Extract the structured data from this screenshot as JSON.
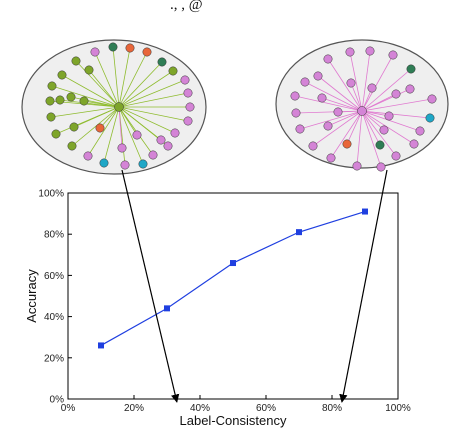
{
  "header_fragment": "., ,  @",
  "chart_data": {
    "type": "line",
    "xlabel": "Label-Consistency",
    "ylabel": "Accuracy",
    "xlim": [
      0,
      100
    ],
    "ylim": [
      0,
      100
    ],
    "x_ticks": [
      "0%",
      "20%",
      "40%",
      "60%",
      "80%",
      "100%"
    ],
    "y_ticks": [
      "0%",
      "20%",
      "40%",
      "60%",
      "80%",
      "100%"
    ],
    "series": [
      {
        "x": [
          10,
          30,
          50,
          70,
          90
        ],
        "y": [
          26,
          44,
          66,
          81,
          91
        ]
      }
    ],
    "grid": false,
    "line_color": "#1f3fe0",
    "annotations": [
      {
        "type": "network-inset",
        "position": "top-left",
        "points_to_x": 33
      },
      {
        "type": "network-inset",
        "position": "top-right",
        "points_to_x": 83
      }
    ]
  },
  "colors": {
    "edge_green": "#8fbc2f",
    "edge_pink": "#e07ad0",
    "node_pink": "#d484d6",
    "node_green": "#7ea52a",
    "node_orange": "#e8663a",
    "node_teal": "#1fa7c7",
    "node_darkgreen": "#2f7d55",
    "inset_fill": "#efefef"
  }
}
